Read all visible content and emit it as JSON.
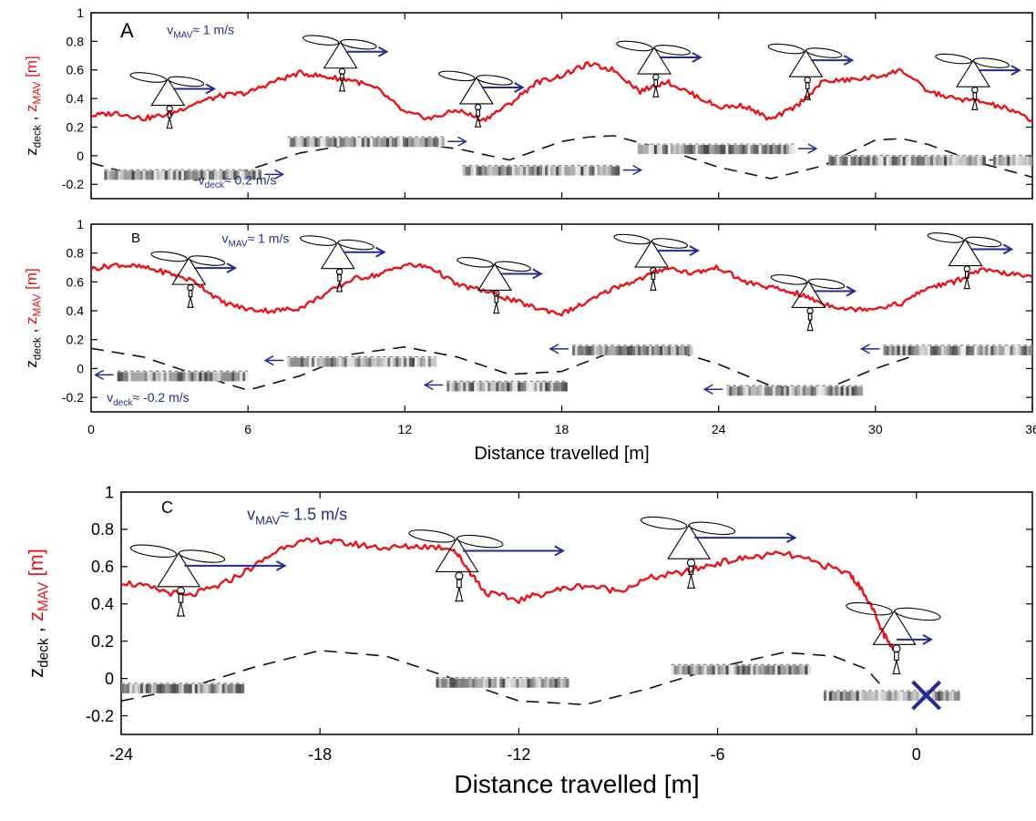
{
  "colors": {
    "mav": "#e8141b",
    "deck": "#111111",
    "annotation": "#262a8c",
    "axis": "#000000"
  },
  "icons": [
    "helicopter-icon",
    "deck-platform-icon",
    "velocity-arrow-icon",
    "cross-marker-icon"
  ],
  "ylabel": {
    "deck": "z",
    "deck_sub": "deck",
    "sep": " , ",
    "mav": "z",
    "mav_sub": "MAV",
    "unit": " [m]"
  },
  "panels": [
    {
      "id": "A",
      "label": "A",
      "xlim": [
        0,
        36
      ],
      "ylim": [
        -0.3,
        1
      ],
      "xticks": [],
      "yticks": [
        -0.2,
        0,
        0.2,
        0.4,
        0.6,
        0.8,
        1
      ],
      "xlabel": "",
      "vmav_text": {
        "v": "v",
        "sub": "MAV",
        "rest": "≈ 1 m/s",
        "x": 2.9,
        "y": 0.85
      },
      "vdeck_text": {
        "v": "v",
        "sub": "deck",
        "rest": "≈ 0.2 m/s",
        "x": 4.1,
        "y": -0.2
      },
      "mav_points": [
        [
          0,
          0.28
        ],
        [
          1,
          0.3
        ],
        [
          2,
          0.26
        ],
        [
          3,
          0.29
        ],
        [
          4,
          0.37
        ],
        [
          5,
          0.42
        ],
        [
          6,
          0.44
        ],
        [
          7,
          0.52
        ],
        [
          8,
          0.58
        ],
        [
          9,
          0.55
        ],
        [
          10,
          0.53
        ],
        [
          11,
          0.46
        ],
        [
          12,
          0.3
        ],
        [
          13,
          0.26
        ],
        [
          14,
          0.32
        ],
        [
          15,
          0.25
        ],
        [
          16,
          0.36
        ],
        [
          17,
          0.51
        ],
        [
          18,
          0.56
        ],
        [
          19,
          0.64
        ],
        [
          20,
          0.6
        ],
        [
          21,
          0.45
        ],
        [
          22,
          0.52
        ],
        [
          23,
          0.43
        ],
        [
          24,
          0.34
        ],
        [
          25,
          0.35
        ],
        [
          26,
          0.25
        ],
        [
          27,
          0.35
        ],
        [
          28,
          0.52
        ],
        [
          29,
          0.53
        ],
        [
          30,
          0.55
        ],
        [
          31,
          0.6
        ],
        [
          32,
          0.45
        ],
        [
          33,
          0.4
        ],
        [
          34,
          0.38
        ],
        [
          35,
          0.33
        ],
        [
          36,
          0.25
        ]
      ],
      "deck_points": [
        [
          0,
          -0.05
        ],
        [
          2,
          -0.15
        ],
        [
          4,
          -0.17
        ],
        [
          6,
          -0.1
        ],
        [
          8,
          0.02
        ],
        [
          10,
          0.08
        ],
        [
          12,
          0.09
        ],
        [
          14,
          0.05
        ],
        [
          16,
          -0.03
        ],
        [
          18,
          0.1
        ],
        [
          19,
          0.13
        ],
        [
          20,
          0.14
        ],
        [
          22,
          0.04
        ],
        [
          24,
          -0.08
        ],
        [
          26,
          -0.16
        ],
        [
          28,
          -0.07
        ],
        [
          30,
          0.11
        ],
        [
          31,
          0.12
        ],
        [
          32,
          0.08
        ],
        [
          34,
          -0.05
        ],
        [
          36,
          -0.15
        ]
      ],
      "decks": [
        [
          0.5,
          -0.13,
          6.5
        ],
        [
          7.5,
          0.1,
          13.5
        ],
        [
          14.2,
          -0.1,
          20.2
        ],
        [
          20.9,
          0.05,
          26.9
        ],
        [
          28.2,
          -0.03,
          34.2
        ],
        [
          34.5,
          -0.03,
          36.2
        ]
      ],
      "deck_dir": 1,
      "helis": [
        [
          3.0,
          0.33
        ],
        [
          9.6,
          0.59
        ],
        [
          14.8,
          0.34
        ],
        [
          21.6,
          0.55
        ],
        [
          27.4,
          0.53
        ],
        [
          33.8,
          0.46
        ]
      ],
      "cross": null
    },
    {
      "id": "B",
      "label": "B",
      "xlim": [
        0,
        36
      ],
      "ylim": [
        -0.3,
        1
      ],
      "xticks": [
        0,
        6,
        12,
        18,
        24,
        30,
        36
      ],
      "yticks": [
        -0.2,
        0,
        0.2,
        0.4,
        0.6,
        0.8,
        1
      ],
      "xlabel": "Distance travelled [m]",
      "vmav_text": {
        "v": "v",
        "sub": "MAV",
        "rest": "≈ 1 m/s",
        "x": 5.0,
        "y": 0.87
      },
      "vdeck_text": {
        "v": "v",
        "sub": "deck",
        "rest": "≈ -0.2 m/s",
        "x": 0.6,
        "y": -0.23
      },
      "mav_points": [
        [
          0,
          0.69
        ],
        [
          1,
          0.72
        ],
        [
          2,
          0.7
        ],
        [
          3,
          0.66
        ],
        [
          4,
          0.6
        ],
        [
          5,
          0.46
        ],
        [
          6,
          0.41
        ],
        [
          7,
          0.4
        ],
        [
          8,
          0.42
        ],
        [
          9,
          0.52
        ],
        [
          10,
          0.62
        ],
        [
          11,
          0.65
        ],
        [
          12,
          0.72
        ],
        [
          13,
          0.7
        ],
        [
          14,
          0.58
        ],
        [
          15,
          0.54
        ],
        [
          16,
          0.48
        ],
        [
          17,
          0.42
        ],
        [
          18,
          0.38
        ],
        [
          19,
          0.46
        ],
        [
          20,
          0.56
        ],
        [
          21,
          0.62
        ],
        [
          22,
          0.7
        ],
        [
          23,
          0.66
        ],
        [
          24,
          0.7
        ],
        [
          25,
          0.6
        ],
        [
          26,
          0.56
        ],
        [
          27,
          0.52
        ],
        [
          28,
          0.45
        ],
        [
          29,
          0.41
        ],
        [
          30,
          0.42
        ],
        [
          31,
          0.45
        ],
        [
          32,
          0.56
        ],
        [
          33,
          0.6
        ],
        [
          34,
          0.68
        ],
        [
          35,
          0.66
        ],
        [
          36,
          0.63
        ]
      ],
      "deck_points": [
        [
          0,
          0.14
        ],
        [
          2,
          0.08
        ],
        [
          4,
          -0.04
        ],
        [
          6,
          -0.15
        ],
        [
          8,
          -0.05
        ],
        [
          10,
          0.1
        ],
        [
          12,
          0.15
        ],
        [
          14,
          0.08
        ],
        [
          16,
          -0.04
        ],
        [
          18,
          -0.02
        ],
        [
          20,
          0.12
        ],
        [
          22,
          0.14
        ],
        [
          24,
          0.03
        ],
        [
          26,
          -0.12
        ],
        [
          28,
          -0.15
        ],
        [
          30,
          0.0
        ],
        [
          32,
          0.12
        ],
        [
          34,
          0.15
        ],
        [
          36,
          0.12
        ]
      ],
      "decks": [
        [
          1.0,
          -0.05,
          6.0
        ],
        [
          7.5,
          0.05,
          13.2
        ],
        [
          13.6,
          -0.12,
          18.2
        ],
        [
          18.4,
          0.13,
          23.0
        ],
        [
          24.3,
          -0.15,
          29.5
        ],
        [
          30.3,
          0.13,
          36.2
        ]
      ],
      "deck_dir": -1,
      "helis": [
        [
          3.8,
          0.56
        ],
        [
          9.5,
          0.67
        ],
        [
          15.5,
          0.52
        ],
        [
          21.5,
          0.68
        ],
        [
          27.5,
          0.4
        ],
        [
          33.5,
          0.69
        ]
      ],
      "cross": null
    },
    {
      "id": "C",
      "label": "C",
      "xlim": [
        -24,
        3.5
      ],
      "ylim": [
        -0.3,
        1
      ],
      "xticks": [
        -24,
        -18,
        -12,
        -6,
        0
      ],
      "yticks": [
        -0.2,
        0,
        0.2,
        0.4,
        0.6,
        0.8,
        1
      ],
      "xlabel": "Distance travelled [m]",
      "vmav_text": {
        "v": "v",
        "sub": "MAV",
        "rest": "≈ 1.5 m/s",
        "x": -20.2,
        "y": 0.85
      },
      "vdeck_text": null,
      "mav_points": [
        [
          -24,
          0.52
        ],
        [
          -23,
          0.48
        ],
        [
          -22,
          0.44
        ],
        [
          -21,
          0.5
        ],
        [
          -20,
          0.6
        ],
        [
          -19,
          0.72
        ],
        [
          -18,
          0.74
        ],
        [
          -17,
          0.72
        ],
        [
          -16,
          0.7
        ],
        [
          -15,
          0.71
        ],
        [
          -14,
          0.7
        ],
        [
          -13.5,
          0.58
        ],
        [
          -13,
          0.46
        ],
        [
          -12,
          0.42
        ],
        [
          -11,
          0.47
        ],
        [
          -10,
          0.5
        ],
        [
          -9,
          0.47
        ],
        [
          -8,
          0.54
        ],
        [
          -7,
          0.57
        ],
        [
          -6,
          0.62
        ],
        [
          -5,
          0.65
        ],
        [
          -4,
          0.67
        ],
        [
          -3,
          0.62
        ],
        [
          -2,
          0.56
        ],
        [
          -1.5,
          0.44
        ],
        [
          -1,
          0.24
        ],
        [
          -0.7,
          0.15
        ]
      ],
      "deck_points": [
        [
          -24,
          -0.12
        ],
        [
          -22,
          -0.05
        ],
        [
          -20,
          0.06
        ],
        [
          -18,
          0.15
        ],
        [
          -16,
          0.12
        ],
        [
          -14,
          0.0
        ],
        [
          -12,
          -0.12
        ],
        [
          -10,
          -0.14
        ],
        [
          -8,
          -0.05
        ],
        [
          -6,
          0.06
        ],
        [
          -4,
          0.14
        ],
        [
          -2.5,
          0.12
        ],
        [
          -1.5,
          0.05
        ],
        [
          -1,
          -0.05
        ]
      ],
      "decks": [
        [
          -24,
          -0.05,
          -20.3
        ],
        [
          -14.5,
          -0.02,
          -10.5
        ],
        [
          -7.4,
          0.05,
          -3.2
        ],
        [
          -2.8,
          -0.09,
          1.3
        ]
      ],
      "deck_dir": 0,
      "helis": [
        [
          -22.2,
          0.47
        ],
        [
          -13.8,
          0.55
        ],
        [
          -6.8,
          0.62
        ],
        [
          -0.6,
          0.16
        ]
      ],
      "cross": [
        0.3,
        -0.09
      ]
    }
  ]
}
